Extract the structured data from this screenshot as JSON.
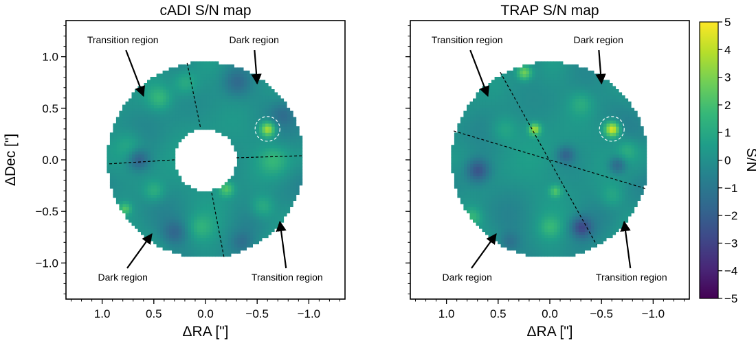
{
  "colors": {
    "viridis": [
      "#440154",
      "#482878",
      "#3e4a89",
      "#31688e",
      "#26828e",
      "#1f9e89",
      "#35b779",
      "#6ece58",
      "#b5de2b",
      "#fde725"
    ],
    "map_base": "#1f8f8a",
    "arrow": "#000000",
    "companion_circle": "#ffffff"
  },
  "chart_data": [
    {
      "type": "heatmap",
      "title": "cADI S/N map",
      "xlabel": "ΔRA [\"]",
      "ylabel": "ΔDec [\"]",
      "xlim": [
        1.35,
        -1.35
      ],
      "ylim": [
        -1.35,
        1.35
      ],
      "xticks": [
        1.0,
        0.5,
        0.0,
        -0.5,
        -1.0
      ],
      "xtick_labels": [
        "1.0",
        "0.5",
        "0.0",
        "−0.5",
        "−1.0"
      ],
      "yticks": [
        1.0,
        0.5,
        0.0,
        -0.5,
        -1.0
      ],
      "ytick_labels": [
        "1.0",
        "0.5",
        "0.0",
        "−0.5",
        "−1.0"
      ],
      "field_outer_radius": 0.95,
      "field_inner_radius": 0.3,
      "companion": {
        "x": -0.6,
        "y": 0.3,
        "r": 0.12
      },
      "region_boundaries": [
        [
          -0.06,
          0.32
        ],
        [
          -0.15,
          0.95
        ]
      ],
      "region_lines": [
        {
          "x1": 0.05,
          "y1": 0.32,
          "x2": 0.18,
          "y2": 0.95
        },
        {
          "x1": -0.3,
          "y1": 0.02,
          "x2": -0.95,
          "y2": 0.04
        },
        {
          "x1": -0.06,
          "y1": -0.32,
          "x2": -0.18,
          "y2": -0.95
        },
        {
          "x1": 0.3,
          "y1": 0.0,
          "x2": 0.95,
          "y2": -0.04
        }
      ],
      "annotations": [
        {
          "text": "Transition region",
          "tx": 0.8,
          "ty": 1.13,
          "ax": 0.6,
          "ay": 0.62
        },
        {
          "text": "Dark region",
          "tx": -0.47,
          "ty": 1.13,
          "ax": -0.5,
          "ay": 0.74
        },
        {
          "text": "Dark region",
          "tx": 0.8,
          "ty": -1.17,
          "ax": 0.52,
          "ay": -0.72
        },
        {
          "text": "Transition region",
          "tx": -0.79,
          "ty": -1.17,
          "ax": -0.72,
          "ay": -0.6
        }
      ],
      "blobs": [
        {
          "x": -0.6,
          "y": 0.3,
          "v": 4.0,
          "s": 0.05
        },
        {
          "x": 0.45,
          "y": 0.6,
          "v": 1.5,
          "s": 0.08
        },
        {
          "x": 0.2,
          "y": 0.75,
          "v": 1.2,
          "s": 0.08
        },
        {
          "x": 0.75,
          "y": 0.15,
          "v": 1.0,
          "s": 0.1
        },
        {
          "x": 0.5,
          "y": -0.3,
          "v": 1.3,
          "s": 0.07
        },
        {
          "x": 0.78,
          "y": -0.47,
          "v": 2.0,
          "s": 0.04
        },
        {
          "x": -0.2,
          "y": -0.28,
          "v": 2.2,
          "s": 0.05
        },
        {
          "x": -0.55,
          "y": -0.45,
          "v": 1.4,
          "s": 0.08
        },
        {
          "x": 0.05,
          "y": -0.65,
          "v": 1.0,
          "s": 0.08
        },
        {
          "x": -0.65,
          "y": 0.0,
          "v": 1.2,
          "s": 0.09
        },
        {
          "x": 0.65,
          "y": 0.0,
          "v": -2.0,
          "s": 0.07
        },
        {
          "x": -0.3,
          "y": 0.75,
          "v": -1.3,
          "s": 0.09
        },
        {
          "x": 0.3,
          "y": -0.7,
          "v": -1.4,
          "s": 0.08
        },
        {
          "x": -0.75,
          "y": 0.45,
          "v": -1.0,
          "s": 0.08
        },
        {
          "x": -0.35,
          "y": -0.8,
          "v": -1.0,
          "s": 0.07
        }
      ]
    },
    {
      "type": "heatmap",
      "title": "TRAP S/N map",
      "xlabel": "ΔRA [\"]",
      "xlim": [
        1.35,
        -1.35
      ],
      "ylim": [
        -1.35,
        1.35
      ],
      "xticks": [
        1.0,
        0.5,
        0.0,
        -0.5,
        -1.0
      ],
      "xtick_labels": [
        "1.0",
        "0.5",
        "0.0",
        "−0.5",
        "−1.0"
      ],
      "yticks": [
        1.0,
        0.5,
        0.0,
        -0.5,
        -1.0
      ],
      "field_outer_radius": 0.95,
      "field_inner_radius": 0.0,
      "companion": {
        "x": -0.6,
        "y": 0.3,
        "r": 0.12
      },
      "region_lines": [
        {
          "x1": 0.48,
          "y1": 0.85,
          "x2": -0.45,
          "y2": -0.82
        },
        {
          "x1": 0.93,
          "y1": 0.28,
          "x2": -0.93,
          "y2": -0.28
        }
      ],
      "annotations": [
        {
          "text": "Transition region",
          "tx": 0.8,
          "ty": 1.13,
          "ax": 0.6,
          "ay": 0.62
        },
        {
          "text": "Dark region",
          "tx": -0.47,
          "ty": 1.13,
          "ax": -0.5,
          "ay": 0.74
        },
        {
          "text": "Dark region",
          "tx": 0.8,
          "ty": -1.17,
          "ax": 0.52,
          "ay": -0.72
        },
        {
          "text": "Transition region",
          "tx": -0.79,
          "ty": -1.17,
          "ax": -0.72,
          "ay": -0.6
        }
      ],
      "blobs": [
        {
          "x": -0.6,
          "y": 0.3,
          "v": 4.8,
          "s": 0.05
        },
        {
          "x": 0.25,
          "y": 0.85,
          "v": 3.0,
          "s": 0.05
        },
        {
          "x": 0.15,
          "y": 0.3,
          "v": 3.5,
          "s": 0.04
        },
        {
          "x": -0.05,
          "y": -0.3,
          "v": 2.0,
          "s": 0.04
        },
        {
          "x": 0.45,
          "y": 0.3,
          "v": 1.0,
          "s": 0.09
        },
        {
          "x": -0.3,
          "y": 0.55,
          "v": 1.0,
          "s": 0.08
        },
        {
          "x": 0.75,
          "y": -0.55,
          "v": 1.3,
          "s": 0.06
        },
        {
          "x": -0.6,
          "y": -0.35,
          "v": 1.0,
          "s": 0.08
        },
        {
          "x": 0.0,
          "y": -0.65,
          "v": 1.2,
          "s": 0.07
        },
        {
          "x": -0.75,
          "y": 0.1,
          "v": 1.0,
          "s": 0.07
        },
        {
          "x": 0.7,
          "y": -0.1,
          "v": -2.5,
          "s": 0.08
        },
        {
          "x": -0.3,
          "y": -0.65,
          "v": -2.5,
          "s": 0.07
        },
        {
          "x": -0.65,
          "y": -0.05,
          "v": -2.0,
          "s": 0.06
        },
        {
          "x": -0.15,
          "y": 0.05,
          "v": -1.8,
          "s": 0.06
        },
        {
          "x": 0.4,
          "y": -0.8,
          "v": -1.2,
          "s": 0.07
        }
      ]
    }
  ],
  "colorbar": {
    "label": "S/N",
    "vmin": -5,
    "vmax": 5,
    "ticks": [
      5,
      4,
      3,
      2,
      1,
      0,
      -1,
      -2,
      -3,
      -4,
      -5
    ],
    "tick_labels": [
      "5",
      "4",
      "3",
      "2",
      "1",
      "0",
      "−1",
      "−2",
      "−3",
      "−4",
      "−5"
    ]
  }
}
